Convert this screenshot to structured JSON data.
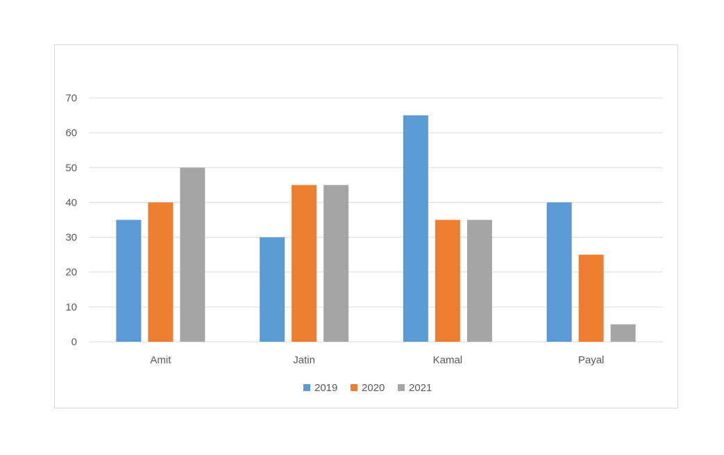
{
  "chart_data": {
    "type": "bar",
    "title": "",
    "xlabel": "",
    "ylabel": "",
    "categories": [
      "Amit",
      "Jatin",
      "Kamal",
      "Payal"
    ],
    "series": [
      {
        "name": "2019",
        "color": "#5b9bd5",
        "values": [
          35,
          30,
          65,
          40
        ]
      },
      {
        "name": "2020",
        "color": "#ed7d31",
        "values": [
          40,
          45,
          35,
          25
        ]
      },
      {
        "name": "2021",
        "color": "#a5a5a5",
        "values": [
          50,
          45,
          35,
          5
        ]
      }
    ],
    "ylim": [
      0,
      70
    ],
    "yticks": [
      0,
      10,
      20,
      30,
      40,
      50,
      60,
      70
    ],
    "grid": true,
    "gridline_color": "#d9d9d9",
    "legend_position": "bottom"
  }
}
